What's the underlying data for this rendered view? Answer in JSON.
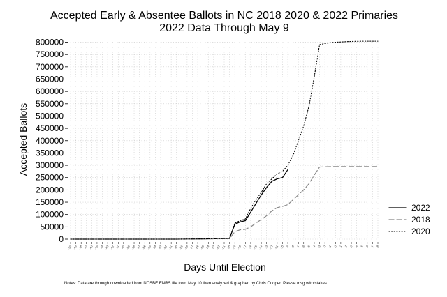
{
  "chart_data": {
    "type": "line",
    "title": "Accepted Early & Absentee Ballots in NC 2018 2020 & 2022 Primaries",
    "subtitle": "2022 Data Through May 9",
    "xlabel": "Days Until Election",
    "ylabel": "Accepted Ballots",
    "note": "Notes: Data are through downloaded from NCSBE ENRS file from May 10 then analyzed & graphed by Chris Cooper. Please msg w/mistakes.",
    "ylim": [
      0,
      810000
    ],
    "yticks": [
      0,
      50000,
      100000,
      150000,
      200000,
      250000,
      300000,
      350000,
      400000,
      450000,
      500000,
      550000,
      600000,
      650000,
      700000,
      750000,
      800000
    ],
    "ytick_labels": [
      "0",
      "50000",
      "100000",
      "150000",
      "200000",
      "250000",
      "300000",
      "350000",
      "400000",
      "450000",
      "500000",
      "550000",
      "600000",
      "650000",
      "700000",
      "750000",
      "800000"
    ],
    "x_categories": [
      "-50",
      "-49",
      "-48",
      "-47",
      "-46",
      "-45",
      "-44",
      "-43",
      "-42",
      "-41",
      "-40",
      "-39",
      "-38",
      "-37",
      "-36",
      "-35",
      "-34",
      "-33",
      "-32",
      "-31",
      "-30",
      "-29",
      "-28",
      "-27",
      "-26",
      "-25",
      "-24",
      "-23",
      "-22",
      "-21",
      "-20",
      "-19",
      "-18",
      "-17",
      "-16",
      "-15",
      "-14",
      "-13",
      "-12",
      "-11",
      "-10",
      "-9",
      "-8",
      "-7",
      "-6",
      "-5",
      "-4",
      "-3",
      "-2",
      "-1",
      "0",
      "1",
      "2",
      "3",
      "4",
      "5",
      "6",
      "7",
      "8"
    ],
    "grid": true,
    "legend_position": "right",
    "series": [
      {
        "name": "2022",
        "dash": "solid",
        "color": "#000000",
        "x": [
          -50,
          -40,
          -30,
          -25,
          -20,
          -19,
          -18,
          -17,
          -16,
          -15,
          -14,
          -13,
          -12,
          -11,
          -10,
          -9
        ],
        "y": [
          0,
          0,
          0,
          1000,
          3000,
          60000,
          70000,
          75000,
          110000,
          145000,
          180000,
          210000,
          235000,
          245000,
          250000,
          282000
        ]
      },
      {
        "name": "2018",
        "dash": "dashed",
        "color": "#888888",
        "x": [
          -50,
          -40,
          -30,
          -25,
          -20,
          -19,
          -18,
          -17,
          -16,
          -15,
          -14,
          -13,
          -12,
          -11,
          -10,
          -9,
          -8,
          -7,
          -6,
          -5,
          -4,
          -3,
          -2,
          -1,
          0,
          1,
          2,
          3,
          4,
          5,
          6,
          7,
          8
        ],
        "y": [
          0,
          0,
          0,
          1000,
          2000,
          30000,
          38000,
          40000,
          50000,
          65000,
          80000,
          95000,
          115000,
          128000,
          133000,
          140000,
          160000,
          180000,
          200000,
          225000,
          260000,
          293000,
          294000,
          294500,
          295000,
          295000,
          295000,
          295000,
          295000,
          295000,
          295000,
          295000,
          295000
        ]
      },
      {
        "name": "2020",
        "dash": "dotted",
        "color": "#000000",
        "x": [
          -50,
          -40,
          -30,
          -25,
          -20,
          -19,
          -18,
          -17,
          -16,
          -15,
          -14,
          -13,
          -12,
          -11,
          -10,
          -9,
          -8,
          -7,
          -6,
          -5,
          -4,
          -3,
          -2,
          -1,
          0,
          1,
          2,
          3,
          4,
          5,
          6,
          7,
          8
        ],
        "y": [
          0,
          0,
          0,
          1000,
          3000,
          65000,
          75000,
          82000,
          125000,
          160000,
          190000,
          225000,
          245000,
          265000,
          275000,
          300000,
          340000,
          400000,
          460000,
          540000,
          660000,
          790000,
          795000,
          798000,
          800000,
          801000,
          802000,
          803000,
          803500,
          804000,
          804000,
          804000,
          804000
        ]
      }
    ]
  }
}
